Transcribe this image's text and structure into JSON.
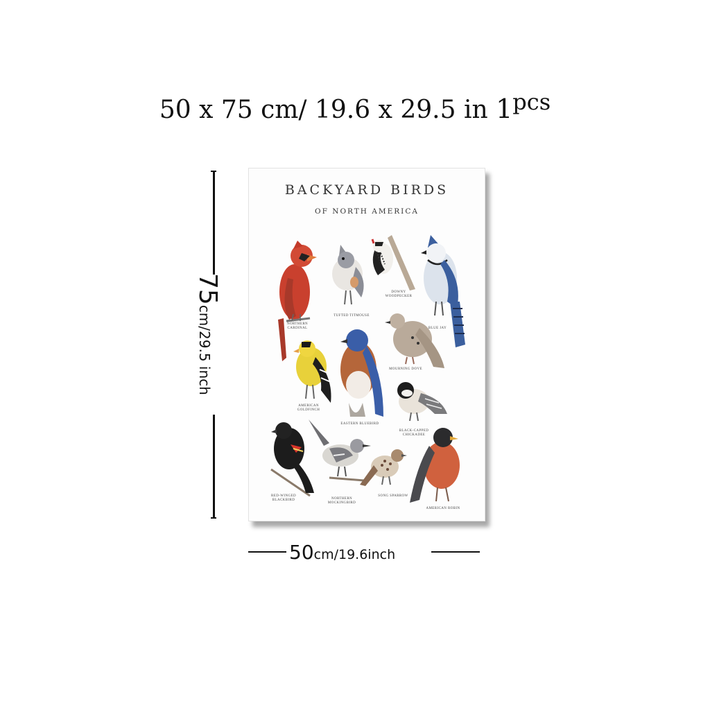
{
  "heading": {
    "size_cm": "50 x 75 cm/",
    "size_in": "19.6 x 29.5 in",
    "pcs_number": "1",
    "pcs_text": "pcs"
  },
  "poster": {
    "title": "BACKYARD BIRDS",
    "subtitle": "OF NORTH AMERICA",
    "birds": [
      {
        "label": "NORTHERN CARDINAL",
        "icon": "cardinal-illustration"
      },
      {
        "label": "TUFTED TITMOUSE",
        "icon": "titmouse-illustration"
      },
      {
        "label": "DOWNY WOODPECKER",
        "icon": "woodpecker-illustration"
      },
      {
        "label": "BLUE JAY",
        "icon": "blue-jay-illustration"
      },
      {
        "label": "AMERICAN GOLDFINCH",
        "icon": "goldfinch-illustration"
      },
      {
        "label": "EASTERN BLUEBIRD",
        "icon": "bluebird-illustration"
      },
      {
        "label": "MOURNING DOVE",
        "icon": "dove-illustration"
      },
      {
        "label": "BLACK-CAPPED CHICKADEE",
        "icon": "chickadee-illustration"
      },
      {
        "label": "RED-WINGED BLACKBIRD",
        "icon": "blackbird-illustration"
      },
      {
        "label": "NORTHERN MOCKINGBIRD",
        "icon": "mockingbird-illustration"
      },
      {
        "label": "SONG SPARROW",
        "icon": "sparrow-illustration"
      },
      {
        "label": "AMERICAN ROBIN",
        "icon": "robin-illustration"
      }
    ]
  },
  "dimensions": {
    "height_value": "75",
    "height_unit": "cm/29.5 inch",
    "width_value": "50",
    "width_unit": "cm/19.6inch"
  },
  "colors": {
    "cardinal": "#c9402e",
    "blue_jay": "#3b5f9e",
    "goldfinch": "#e8d13a",
    "bluebird_blue": "#3a5ea8",
    "bluebird_orange": "#b5663a",
    "robin_breast": "#d0613e",
    "blackbird_red": "#d8342a"
  }
}
